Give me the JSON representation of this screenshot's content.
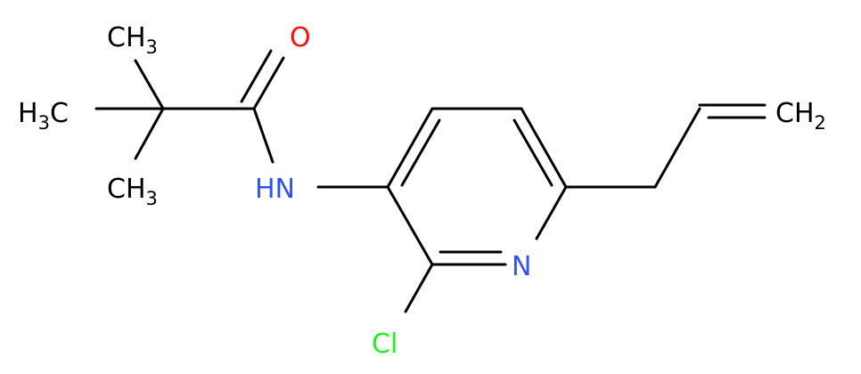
{
  "labels": [
    {
      "parts": [
        "CH",
        "3"
      ]
    },
    {
      "parts": [
        "H",
        "3",
        "C"
      ]
    },
    {
      "parts": [
        "CH",
        "3"
      ]
    },
    {
      "parts": [
        "O"
      ]
    },
    {
      "parts": [
        "HN"
      ]
    },
    {
      "parts": [
        "N"
      ]
    },
    {
      "parts": [
        "Cl"
      ]
    },
    {
      "parts": [
        "CH",
        "2"
      ]
    }
  ]
}
